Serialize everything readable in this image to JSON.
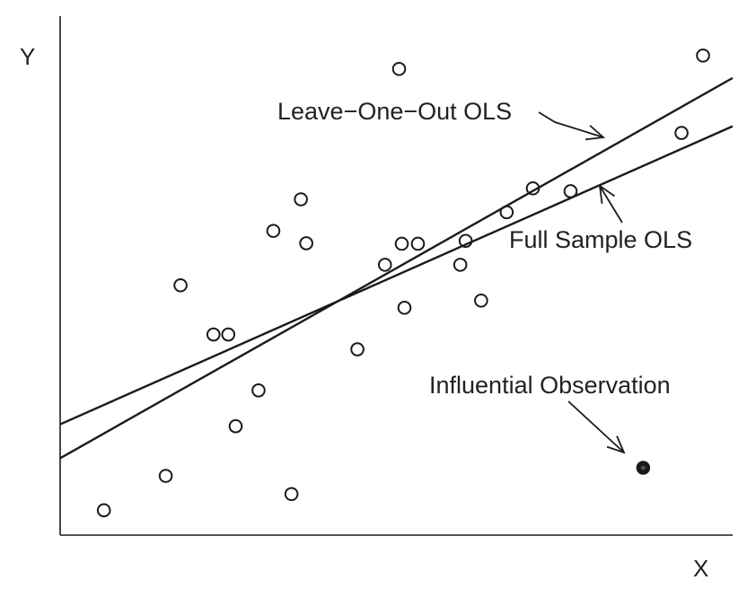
{
  "chart_data": {
    "type": "scatter",
    "title": "",
    "xlabel": "X",
    "ylabel": "Y",
    "xlim": [
      0,
      100
    ],
    "ylim": [
      0,
      100
    ],
    "grid": false,
    "legend": "none",
    "colors": {
      "ink": "#1a1a1a",
      "background": "#ffffff"
    },
    "points": [
      {
        "x": 6.5,
        "y": 5.2
      },
      {
        "x": 15.7,
        "y": 12.4
      },
      {
        "x": 17.9,
        "y": 52.3
      },
      {
        "x": 22.8,
        "y": 42.0
      },
      {
        "x": 25.0,
        "y": 42.0
      },
      {
        "x": 26.1,
        "y": 22.8
      },
      {
        "x": 29.5,
        "y": 30.3
      },
      {
        "x": 31.7,
        "y": 63.7
      },
      {
        "x": 34.4,
        "y": 8.6
      },
      {
        "x": 35.8,
        "y": 70.3
      },
      {
        "x": 36.6,
        "y": 61.1
      },
      {
        "x": 44.2,
        "y": 38.9
      },
      {
        "x": 48.3,
        "y": 56.6
      },
      {
        "x": 50.4,
        "y": 97.6
      },
      {
        "x": 50.8,
        "y": 61.0
      },
      {
        "x": 51.2,
        "y": 47.6
      },
      {
        "x": 53.2,
        "y": 61.0
      },
      {
        "x": 59.5,
        "y": 56.6
      },
      {
        "x": 60.3,
        "y": 61.6
      },
      {
        "x": 62.6,
        "y": 49.1
      },
      {
        "x": 66.4,
        "y": 67.6
      },
      {
        "x": 70.3,
        "y": 72.6
      },
      {
        "x": 75.9,
        "y": 72.0
      },
      {
        "x": 92.4,
        "y": 84.2
      },
      {
        "x": 95.6,
        "y": 100.4
      }
    ],
    "influential_point": {
      "x": 86.7,
      "y": 14.1
    },
    "lines": [
      {
        "name": "Leave-One-Out OLS",
        "x": [
          0,
          100
        ],
        "y": [
          16.1,
          95.7
        ]
      },
      {
        "name": "Full Sample OLS",
        "x": [
          0,
          100
        ],
        "y": [
          23.2,
          85.6
        ]
      }
    ],
    "annotations": {
      "leave_one_out": "Leave−One−Out OLS",
      "full_sample": "Full Sample OLS",
      "influential": "Influential Observation"
    }
  }
}
